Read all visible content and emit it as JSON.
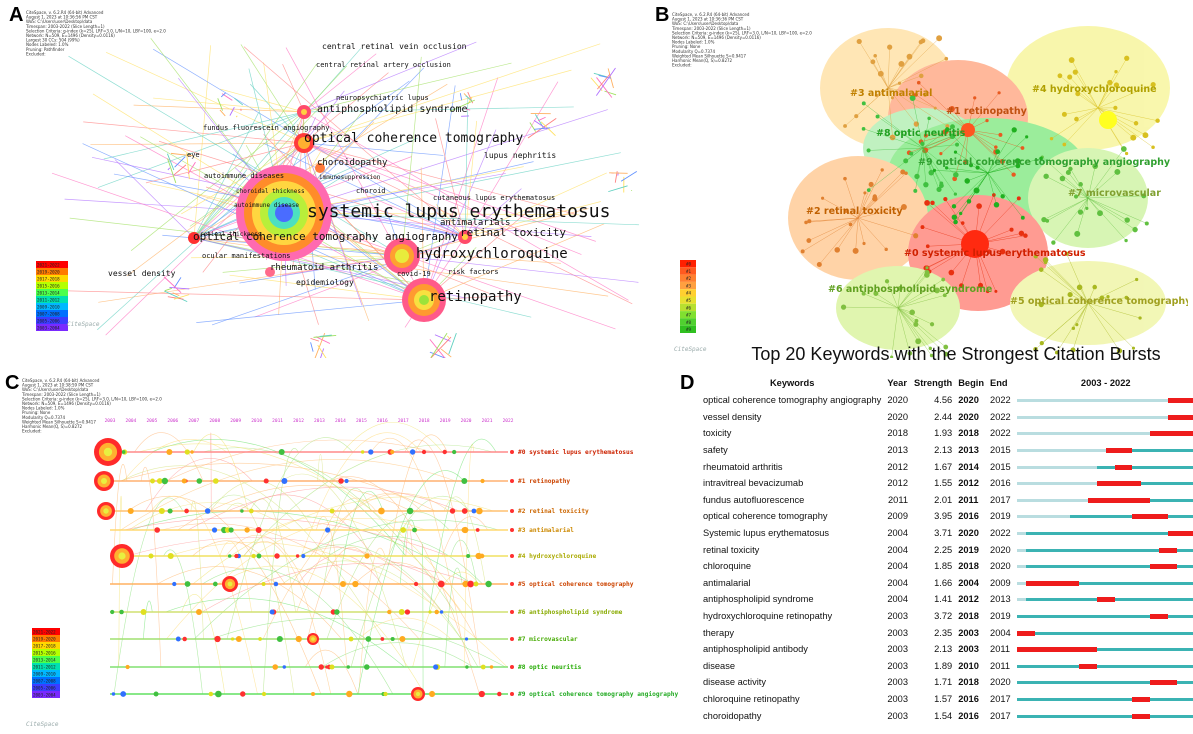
{
  "panels": {
    "a": {
      "label": "A"
    },
    "b": {
      "label": "B"
    },
    "c": {
      "label": "C"
    },
    "d": {
      "label": "D"
    }
  },
  "panel_a": {
    "meta": [
      "CiteSpace, v. 6.2.R4 (64-bit) Advanced",
      "August 1, 2023 at 10:36:56 PM CST",
      "WoS: C:\\Users\\user\\Desktop\\data",
      "Timespan: 2003-2022 (Slice Length=1)",
      "Selection Criteria: g-index (k=25), LRF=3.0, L/N=10, LBY=100, e=2.0",
      "Network: N=509, E=1496 (Density=0.0116)",
      "Largest 30 CCs: 504 (99%)",
      "Nodes Labeled: 1.0%",
      "Pruning: Pathfinder",
      "Excluded:"
    ],
    "keywords": [
      "central retinal vein occlusion",
      "central retinal artery occlusion",
      "neuropsychiatric lupus",
      "antiphospholipid syndrome",
      "fundus fluorescein angiography",
      "optical coherence tomography",
      "lupus nephritis",
      "eye",
      "choroidopathy",
      "autoimmune diseases",
      "immunosuppression",
      "choroidal thickness",
      "choroid",
      "cutaneous lupus erythematosus",
      "autoimmune disease",
      "systemic lupus erythematosus",
      "antimalarials",
      "retinal thickness",
      "retinal toxicity",
      "optical coherence tomography angiography",
      "hydroxychloroquine",
      "ocular manifestations",
      "rheumatoid arthritis",
      "covid-19",
      "risk factors",
      "vessel density",
      "epidemiology",
      "retinopathy"
    ],
    "legend": [
      "2021-2022",
      "2019-2020",
      "2017-2018",
      "2015-2016",
      "2013-2014",
      "2011-2012",
      "2009-2010",
      "2007-2008",
      "2005-2006",
      "2003-2004"
    ],
    "logo": "CiteSpace"
  },
  "panel_b": {
    "meta": [
      "CiteSpace, v. 6.2.R4 (64-bit) Advanced",
      "August 1, 2023 at 10:36:36 PM CST",
      "WoS: C:\\Users\\user\\Desktop\\data",
      "Timespan: 2003-2022 (Slice Length=1)",
      "Selection Criteria: g-index (k=25), LRF=3.0, L/N=10, LBY=100, e=2.0",
      "Network: N=509, E=1496 (Density=0.0116)",
      "Nodes Labeled: 1.0%",
      "Pruning: None",
      "Modularity Q=0.7374",
      "Weighted Mean Silhouette S=0.9417",
      "Harmonic Mean(Q, S)=0.8272",
      "Excluded:"
    ],
    "clusters": [
      "#3 antimalarial",
      "#1 retinopathy",
      "#4 hydroxychloroquine",
      "#8 optic neuritis",
      "#9 optical coherence tomography angiography",
      "#7 microvascular",
      "#2 retinal toxicity",
      "#0 systemic lupus erythematosus",
      "#6 antiphospholipid syndrome",
      "#5 optical coherence tomography"
    ],
    "legend": [
      "#0",
      "#1",
      "#2",
      "#3",
      "#4",
      "#5",
      "#6",
      "#7",
      "#8",
      "#9"
    ],
    "logo": "CiteSpace"
  },
  "panel_c": {
    "meta": [
      "CiteSpace, v. 6.2.R4 (64-bit) Advanced",
      "August 1, 2023 at 10:38:59 PM CST",
      "WoS: C:\\Users\\user\\Desktop\\data",
      "Timespan: 2003-2022 (Slice Length=1)",
      "Selection Criteria: g-index (k=25), LRF=3.0, L/N=10, LBY=100, e=2.0",
      "Network: N=509, E=1496 (Density=0.0116)",
      "Nodes Labeled: 1.0%",
      "Pruning: None",
      "Modularity Q=0.7374",
      "Weighted Mean Silhouette S=0.9417",
      "Harmonic Mean(Q, S)=0.8272",
      "Excluded:"
    ],
    "years": [
      "2003",
      "2004",
      "2005",
      "2006",
      "2007",
      "2008",
      "2009",
      "2010",
      "2011",
      "2012",
      "2013",
      "2014",
      "2015",
      "2016",
      "2017",
      "2018",
      "2019",
      "2020",
      "2021",
      "2022"
    ],
    "clusters": [
      "#0 systemic lupus erythematosus",
      "#1 retinopathy",
      "#2 retinal toxicity",
      "#3 antimalarial",
      "#4 hydroxychloroquine",
      "#5 optical coherence tomography",
      "#6 antiphospholipid syndrome",
      "#7 microvascular",
      "#8 optic neuritis",
      "#9 optical coherence tomography angiography"
    ],
    "legend": [
      "2021-2022",
      "2019-2020",
      "2017-2018",
      "2015-2016",
      "2013-2014",
      "2011-2012",
      "2009-2010",
      "2007-2008",
      "2005-2006",
      "2003-2004"
    ],
    "logo": "CiteSpace"
  },
  "panel_d": {
    "title": "Top 20 Keywords with the Strongest Citation Bursts",
    "headers": {
      "keywords": "Keywords",
      "year": "Year",
      "strength": "Strength",
      "begin": "Begin",
      "end": "End",
      "range": "2003 - 2022"
    },
    "range_start": 2003,
    "range_end": 2022,
    "rows": [
      {
        "keyword": "optical coherence tomography angiography",
        "year": "2020",
        "strength": "4.56",
        "begin": "2020",
        "end": "2022"
      },
      {
        "keyword": "vessel density",
        "year": "2020",
        "strength": "2.44",
        "begin": "2020",
        "end": "2022"
      },
      {
        "keyword": "toxicity",
        "year": "2018",
        "strength": "1.93",
        "begin": "2018",
        "end": "2022"
      },
      {
        "keyword": "safety",
        "year": "2013",
        "strength": "2.13",
        "begin": "2013",
        "end": "2015"
      },
      {
        "keyword": "rheumatoid arthritis",
        "year": "2012",
        "strength": "1.67",
        "begin": "2014",
        "end": "2015"
      },
      {
        "keyword": "intravitreal bevacizumab",
        "year": "2012",
        "strength": "1.55",
        "begin": "2012",
        "end": "2016"
      },
      {
        "keyword": "fundus autofluorescence",
        "year": "2011",
        "strength": "2.01",
        "begin": "2011",
        "end": "2017"
      },
      {
        "keyword": "optical coherence tomography",
        "year": "2009",
        "strength": "3.95",
        "begin": "2016",
        "end": "2019"
      },
      {
        "keyword": "Systemic lupus erythematosus",
        "year": "2004",
        "strength": "3.71",
        "begin": "2020",
        "end": "2022"
      },
      {
        "keyword": "retinal toxicity",
        "year": "2004",
        "strength": "2.25",
        "begin": "2019",
        "end": "2020"
      },
      {
        "keyword": "chloroquine",
        "year": "2004",
        "strength": "1.85",
        "begin": "2018",
        "end": "2020"
      },
      {
        "keyword": "antimalarial",
        "year": "2004",
        "strength": "1.66",
        "begin": "2004",
        "end": "2009"
      },
      {
        "keyword": "antiphospholipid syndrome",
        "year": "2004",
        "strength": "1.41",
        "begin": "2012",
        "end": "2013"
      },
      {
        "keyword": "hydroxychloroquine retinopathy",
        "year": "2003",
        "strength": "3.72",
        "begin": "2018",
        "end": "2019"
      },
      {
        "keyword": "therapy",
        "year": "2003",
        "strength": "2.35",
        "begin": "2003",
        "end": "2004"
      },
      {
        "keyword": "antiphospholipid antibody",
        "year": "2003",
        "strength": "2.13",
        "begin": "2003",
        "end": "2011"
      },
      {
        "keyword": "disease",
        "year": "2003",
        "strength": "1.89",
        "begin": "2010",
        "end": "2011"
      },
      {
        "keyword": "disease activity",
        "year": "2003",
        "strength": "1.71",
        "begin": "2018",
        "end": "2020"
      },
      {
        "keyword": "chloroquine retinopathy",
        "year": "2003",
        "strength": "1.57",
        "begin": "2016",
        "end": "2017"
      },
      {
        "keyword": "choroidopathy",
        "year": "2003",
        "strength": "1.54",
        "begin": "2016",
        "end": "2017"
      }
    ],
    "colors": {
      "burst": "#ee1c1c",
      "active": "#3bb3b3",
      "inactive": "#b9dde0"
    }
  }
}
